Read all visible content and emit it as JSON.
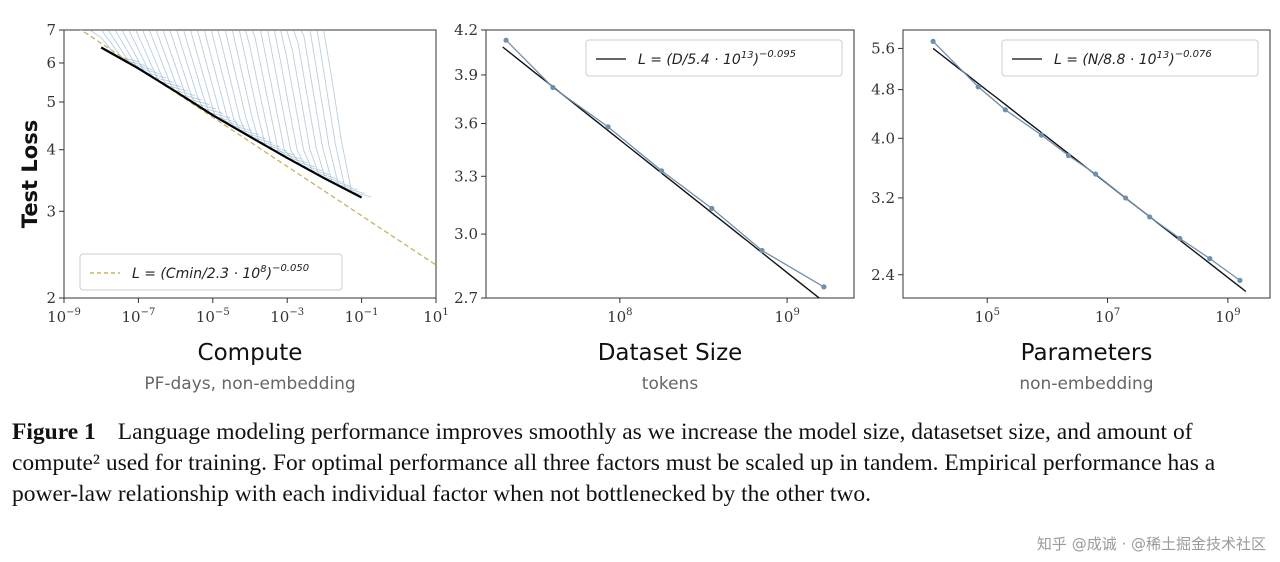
{
  "chart_data": [
    {
      "type": "line",
      "id": "compute",
      "xscale": "log",
      "yscale": "log",
      "title": "Compute",
      "subtitle": "PF-days, non-embedding",
      "ylabel": "Test Loss",
      "xlim_log10": [
        -9,
        1
      ],
      "ylim": [
        2,
        7
      ],
      "xticks": [
        {
          "v": -9,
          "base": "10",
          "exp": "−9"
        },
        {
          "v": -7,
          "base": "10",
          "exp": "−7"
        },
        {
          "v": -5,
          "base": "10",
          "exp": "−5"
        },
        {
          "v": -3,
          "base": "10",
          "exp": "−3"
        },
        {
          "v": -1,
          "base": "10",
          "exp": "−1"
        },
        {
          "v": 1,
          "base": "10",
          "exp": "1"
        }
      ],
      "yticks": [
        {
          "v": 2,
          "label": "2"
        },
        {
          "v": 3,
          "label": "3"
        },
        {
          "v": 4,
          "label": "4"
        },
        {
          "v": 5,
          "label": "5"
        },
        {
          "v": 6,
          "label": "6"
        },
        {
          "v": 7,
          "label": "7"
        }
      ],
      "frontier": {
        "x_log10": [
          -8,
          -7,
          -6,
          -5,
          -4,
          -3,
          -2,
          -1
        ],
        "y": [
          6.45,
          5.85,
          5.25,
          4.7,
          4.25,
          3.85,
          3.5,
          3.2
        ]
      },
      "fit": {
        "coef": 230000000.0,
        "exponent": -0.05,
        "x_log10_range": [
          -9,
          1
        ]
      },
      "legend": {
        "position": "bottom-left",
        "entries": [
          {
            "label": "L = (Cmin/2.3 · 10",
            "sup": "8",
            "tail": ")",
            "exp": "−0.050",
            "style": "dashed",
            "color": "#c8b464"
          }
        ]
      },
      "series": [
        {
          "name": "learning curves",
          "color": "#7ea6c8"
        },
        {
          "name": "frontier",
          "color": "#000000"
        }
      ]
    },
    {
      "type": "line",
      "id": "dataset",
      "xscale": "log",
      "yscale": "log",
      "title": "Dataset Size",
      "subtitle": "tokens",
      "xlim_log10": [
        7.2,
        9.4
      ],
      "ylim": [
        2.7,
        4.2
      ],
      "xticks": [
        {
          "v": 8,
          "base": "10",
          "exp": "8"
        },
        {
          "v": 9,
          "base": "10",
          "exp": "9"
        }
      ],
      "yticks": [
        {
          "v": 2.7,
          "label": "2.7"
        },
        {
          "v": 3.0,
          "label": "3.0"
        },
        {
          "v": 3.3,
          "label": "3.3"
        },
        {
          "v": 3.6,
          "label": "3.6"
        },
        {
          "v": 3.9,
          "label": "3.9"
        },
        {
          "v": 4.2,
          "label": "4.2"
        }
      ],
      "points": {
        "x_log10": [
          7.32,
          7.6,
          7.93,
          8.25,
          8.55,
          8.85,
          9.22
        ],
        "y": [
          4.13,
          3.82,
          3.58,
          3.33,
          3.13,
          2.92,
          2.75
        ]
      },
      "fit": {
        "coef": 54000000000000.0,
        "exponent": -0.095,
        "x_log10_range": [
          7.3,
          9.25
        ]
      },
      "legend": {
        "position": "top-right",
        "entries": [
          {
            "label": "L = (D/5.4 · 10",
            "sup": "13",
            "tail": ")",
            "exp": "−0.095",
            "style": "solid",
            "color": "#333333"
          }
        ]
      },
      "series": [
        {
          "name": "empirical",
          "color": "#6f8fae"
        },
        {
          "name": "fit",
          "color": "#000000"
        }
      ]
    },
    {
      "type": "line",
      "id": "params",
      "xscale": "log",
      "yscale": "log",
      "title": "Parameters",
      "subtitle": "non-embedding",
      "xlim_log10": [
        3.6,
        9.7
      ],
      "ylim": [
        2.2,
        6.0
      ],
      "xticks": [
        {
          "v": 5,
          "base": "10",
          "exp": "5"
        },
        {
          "v": 7,
          "base": "10",
          "exp": "7"
        },
        {
          "v": 9,
          "base": "10",
          "exp": "9"
        }
      ],
      "yticks": [
        {
          "v": 2.4,
          "label": "2.4"
        },
        {
          "v": 3.2,
          "label": "3.2"
        },
        {
          "v": 4.0,
          "label": "4.0"
        },
        {
          "v": 4.8,
          "label": "4.8"
        },
        {
          "v": 5.6,
          "label": "5.6"
        }
      ],
      "points": {
        "x_log10": [
          4.1,
          4.85,
          5.3,
          5.9,
          6.35,
          6.8,
          7.3,
          7.7,
          8.2,
          8.7,
          9.2
        ],
        "y": [
          5.75,
          4.85,
          4.45,
          4.05,
          3.75,
          3.5,
          3.2,
          2.98,
          2.75,
          2.55,
          2.35
        ]
      },
      "fit": {
        "coef": 88000000000000.0,
        "exponent": -0.076,
        "x_log10_range": [
          4.1,
          9.3
        ]
      },
      "legend": {
        "position": "top-right",
        "entries": [
          {
            "label": "L = (N/8.8 · 10",
            "sup": "13",
            "tail": ")",
            "exp": "−0.076",
            "style": "solid",
            "color": "#333333"
          }
        ]
      },
      "series": [
        {
          "name": "empirical",
          "color": "#6f8fae"
        },
        {
          "name": "fit",
          "color": "#000000"
        }
      ]
    }
  ],
  "caption": {
    "label": "Figure 1",
    "text": "Language modeling performance improves smoothly as we increase the model size, datasetset size, and amount of compute² used for training. For optimal performance all three factors must be scaled up in tandem. Empirical performance has a power-law relationship with each individual factor when not bottlenecked by the other two."
  },
  "watermark": "知乎 @成诚 · @稀土掘金技术社区"
}
